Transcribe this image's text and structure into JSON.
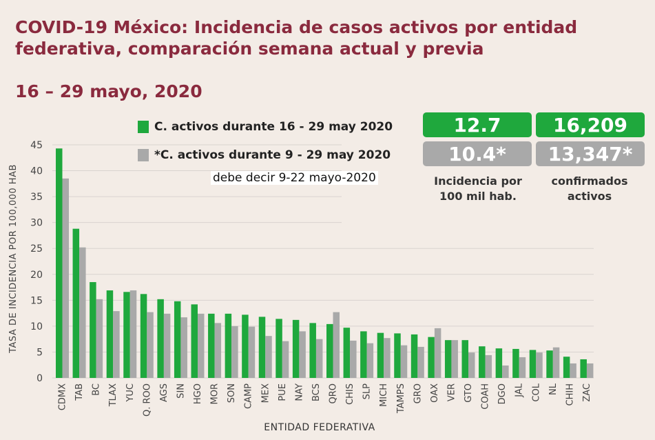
{
  "title": "COVID-19 México: Incidencia de casos activos por entidad federativa, comparación semana actual y previa",
  "date_range": "16 – 29 mayo, 2020",
  "legend": {
    "current": "C. activos durante 16 - 29 may 2020",
    "previous": "*C. activos durante 9 - 29 may 2020"
  },
  "note": "debe decir 9-22 mayo-2020",
  "stats": {
    "incidence_current": "12.7",
    "incidence_previous": "10.4*",
    "incidence_caption": "Incidencia por 100 mil hab.",
    "confirmed_current": "16,209",
    "confirmed_previous": "13,347*",
    "confirmed_caption": "confirmados activos"
  },
  "colors": {
    "title": "#8a2a3e",
    "current": "#1fa83d",
    "previous": "#a9a9a9"
  },
  "chart_data": {
    "type": "bar",
    "title": "",
    "xlabel": "ENTIDAD FEDERATIVA",
    "ylabel": "TASA DE INCIDENCIA POR 100,000 HAB",
    "ylim": [
      0,
      45
    ],
    "yticks": [
      0,
      5,
      10,
      15,
      20,
      25,
      30,
      35,
      40,
      45
    ],
    "grid": true,
    "categories": [
      "CDMX",
      "TAB",
      "BC",
      "TLAX",
      "YUC",
      "Q. ROO",
      "AGS",
      "SIN",
      "HGO",
      "MOR",
      "SON",
      "CAMP",
      "MEX",
      "PUE",
      "NAY",
      "BCS",
      "QRO",
      "CHIS",
      "SLP",
      "MICH",
      "TAMPS",
      "GRO",
      "OAX",
      "VER",
      "GTO",
      "COAH",
      "DGO",
      "JAL",
      "COL",
      "NL",
      "CHIH",
      "ZAC"
    ],
    "series": [
      {
        "name": "C. activos durante 16 - 29 may 2020",
        "values": [
          44.3,
          28.8,
          18.5,
          16.9,
          16.6,
          16.2,
          15.2,
          14.8,
          14.2,
          12.4,
          12.4,
          12.2,
          11.8,
          11.4,
          11.2,
          10.6,
          10.4,
          9.7,
          9.0,
          8.7,
          8.6,
          8.4,
          7.9,
          7.3,
          7.3,
          6.1,
          5.7,
          5.6,
          5.4,
          5.3,
          4.1,
          3.6
        ]
      },
      {
        "name": "*C. activos durante 9 - 29 may 2020",
        "values": [
          38.5,
          25.2,
          15.2,
          12.9,
          16.9,
          12.7,
          12.4,
          11.7,
          12.4,
          10.6,
          10.0,
          9.9,
          8.1,
          7.1,
          9.0,
          7.5,
          12.7,
          7.2,
          6.7,
          7.7,
          6.3,
          6.0,
          9.6,
          7.3,
          4.9,
          4.4,
          2.4,
          4.0,
          4.9,
          5.9,
          2.8,
          2.8
        ]
      }
    ]
  }
}
